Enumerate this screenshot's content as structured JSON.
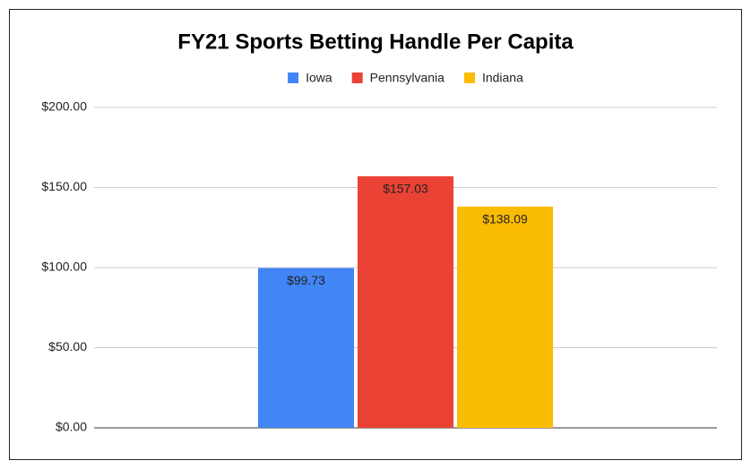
{
  "chart_data": {
    "type": "bar",
    "title": "FY21 Sports Betting Handle Per Capita",
    "categories": [
      null
    ],
    "series": [
      {
        "name": "Iowa",
        "color": "#4285f4",
        "values": [
          99.73
        ],
        "value_labels": [
          "$99.73"
        ]
      },
      {
        "name": "Pennsylvania",
        "color": "#ea4335",
        "values": [
          157.03
        ],
        "value_labels": [
          "$157.03"
        ]
      },
      {
        "name": "Indiana",
        "color": "#fbbc04",
        "values": [
          138.09
        ],
        "value_labels": [
          "$138.09"
        ]
      }
    ],
    "ylim": [
      0,
      200
    ],
    "yticks": [
      {
        "value": 0,
        "label": "$0.00"
      },
      {
        "value": 50,
        "label": "$50.00"
      },
      {
        "value": 100,
        "label": "$100.00"
      },
      {
        "value": 150,
        "label": "$150.00"
      },
      {
        "value": 200,
        "label": "$200.00"
      }
    ],
    "grid": true,
    "legend": "top"
  }
}
